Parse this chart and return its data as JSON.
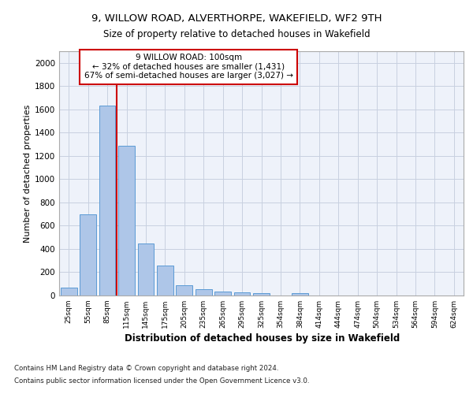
{
  "title1": "9, WILLOW ROAD, ALVERTHORPE, WAKEFIELD, WF2 9TH",
  "title2": "Size of property relative to detached houses in Wakefield",
  "xlabel": "Distribution of detached houses by size in Wakefield",
  "ylabel": "Number of detached properties",
  "footer1": "Contains HM Land Registry data © Crown copyright and database right 2024.",
  "footer2": "Contains public sector information licensed under the Open Government Licence v3.0.",
  "annotation_line1": "9 WILLOW ROAD: 100sqm",
  "annotation_line2": "← 32% of detached houses are smaller (1,431)",
  "annotation_line3": "67% of semi-detached houses are larger (3,027) →",
  "categories": [
    "25sqm",
    "55sqm",
    "85sqm",
    "115sqm",
    "145sqm",
    "175sqm",
    "205sqm",
    "235sqm",
    "265sqm",
    "295sqm",
    "325sqm",
    "354sqm",
    "384sqm",
    "414sqm",
    "444sqm",
    "474sqm",
    "504sqm",
    "534sqm",
    "564sqm",
    "594sqm",
    "624sqm"
  ],
  "values": [
    65,
    695,
    1635,
    1285,
    445,
    255,
    90,
    55,
    35,
    28,
    20,
    0,
    20,
    0,
    0,
    0,
    0,
    0,
    0,
    0,
    0
  ],
  "bar_color": "#aec6e8",
  "bar_edge_color": "#5b9bd5",
  "vline_color": "#cc0000",
  "vline_x": 2.5,
  "annotation_box_color": "#cc0000",
  "ylim": [
    0,
    2100
  ],
  "yticks": [
    0,
    200,
    400,
    600,
    800,
    1000,
    1200,
    1400,
    1600,
    1800,
    2000
  ],
  "grid_color": "#c8d0e0",
  "axes_background": "#eef2fa"
}
